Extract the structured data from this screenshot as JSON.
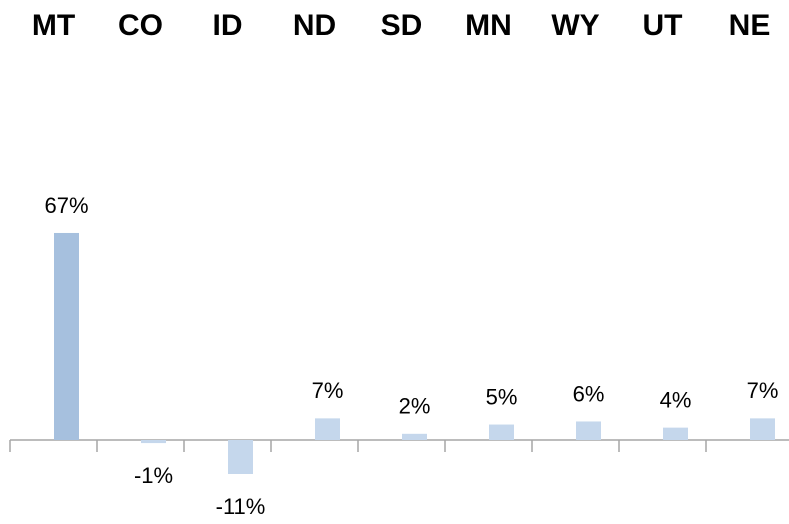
{
  "chart_data": {
    "type": "bar",
    "categories": [
      "MT",
      "CO",
      "ID",
      "ND",
      "SD",
      "MN",
      "WY",
      "UT",
      "NE"
    ],
    "values": [
      67,
      -1,
      -11,
      7,
      2,
      5,
      6,
      4,
      7
    ],
    "value_labels": [
      "67%",
      "-1%",
      "-11%",
      "7%",
      "2%",
      "5%",
      "6%",
      "4%",
      "7%"
    ],
    "colors": [
      "#a6c0de",
      "#c5d7ec",
      "#c5d7ec",
      "#c5d7ec",
      "#c5d7ec",
      "#c5d7ec",
      "#c5d7ec",
      "#c5d7ec",
      "#c5d7ec"
    ]
  }
}
